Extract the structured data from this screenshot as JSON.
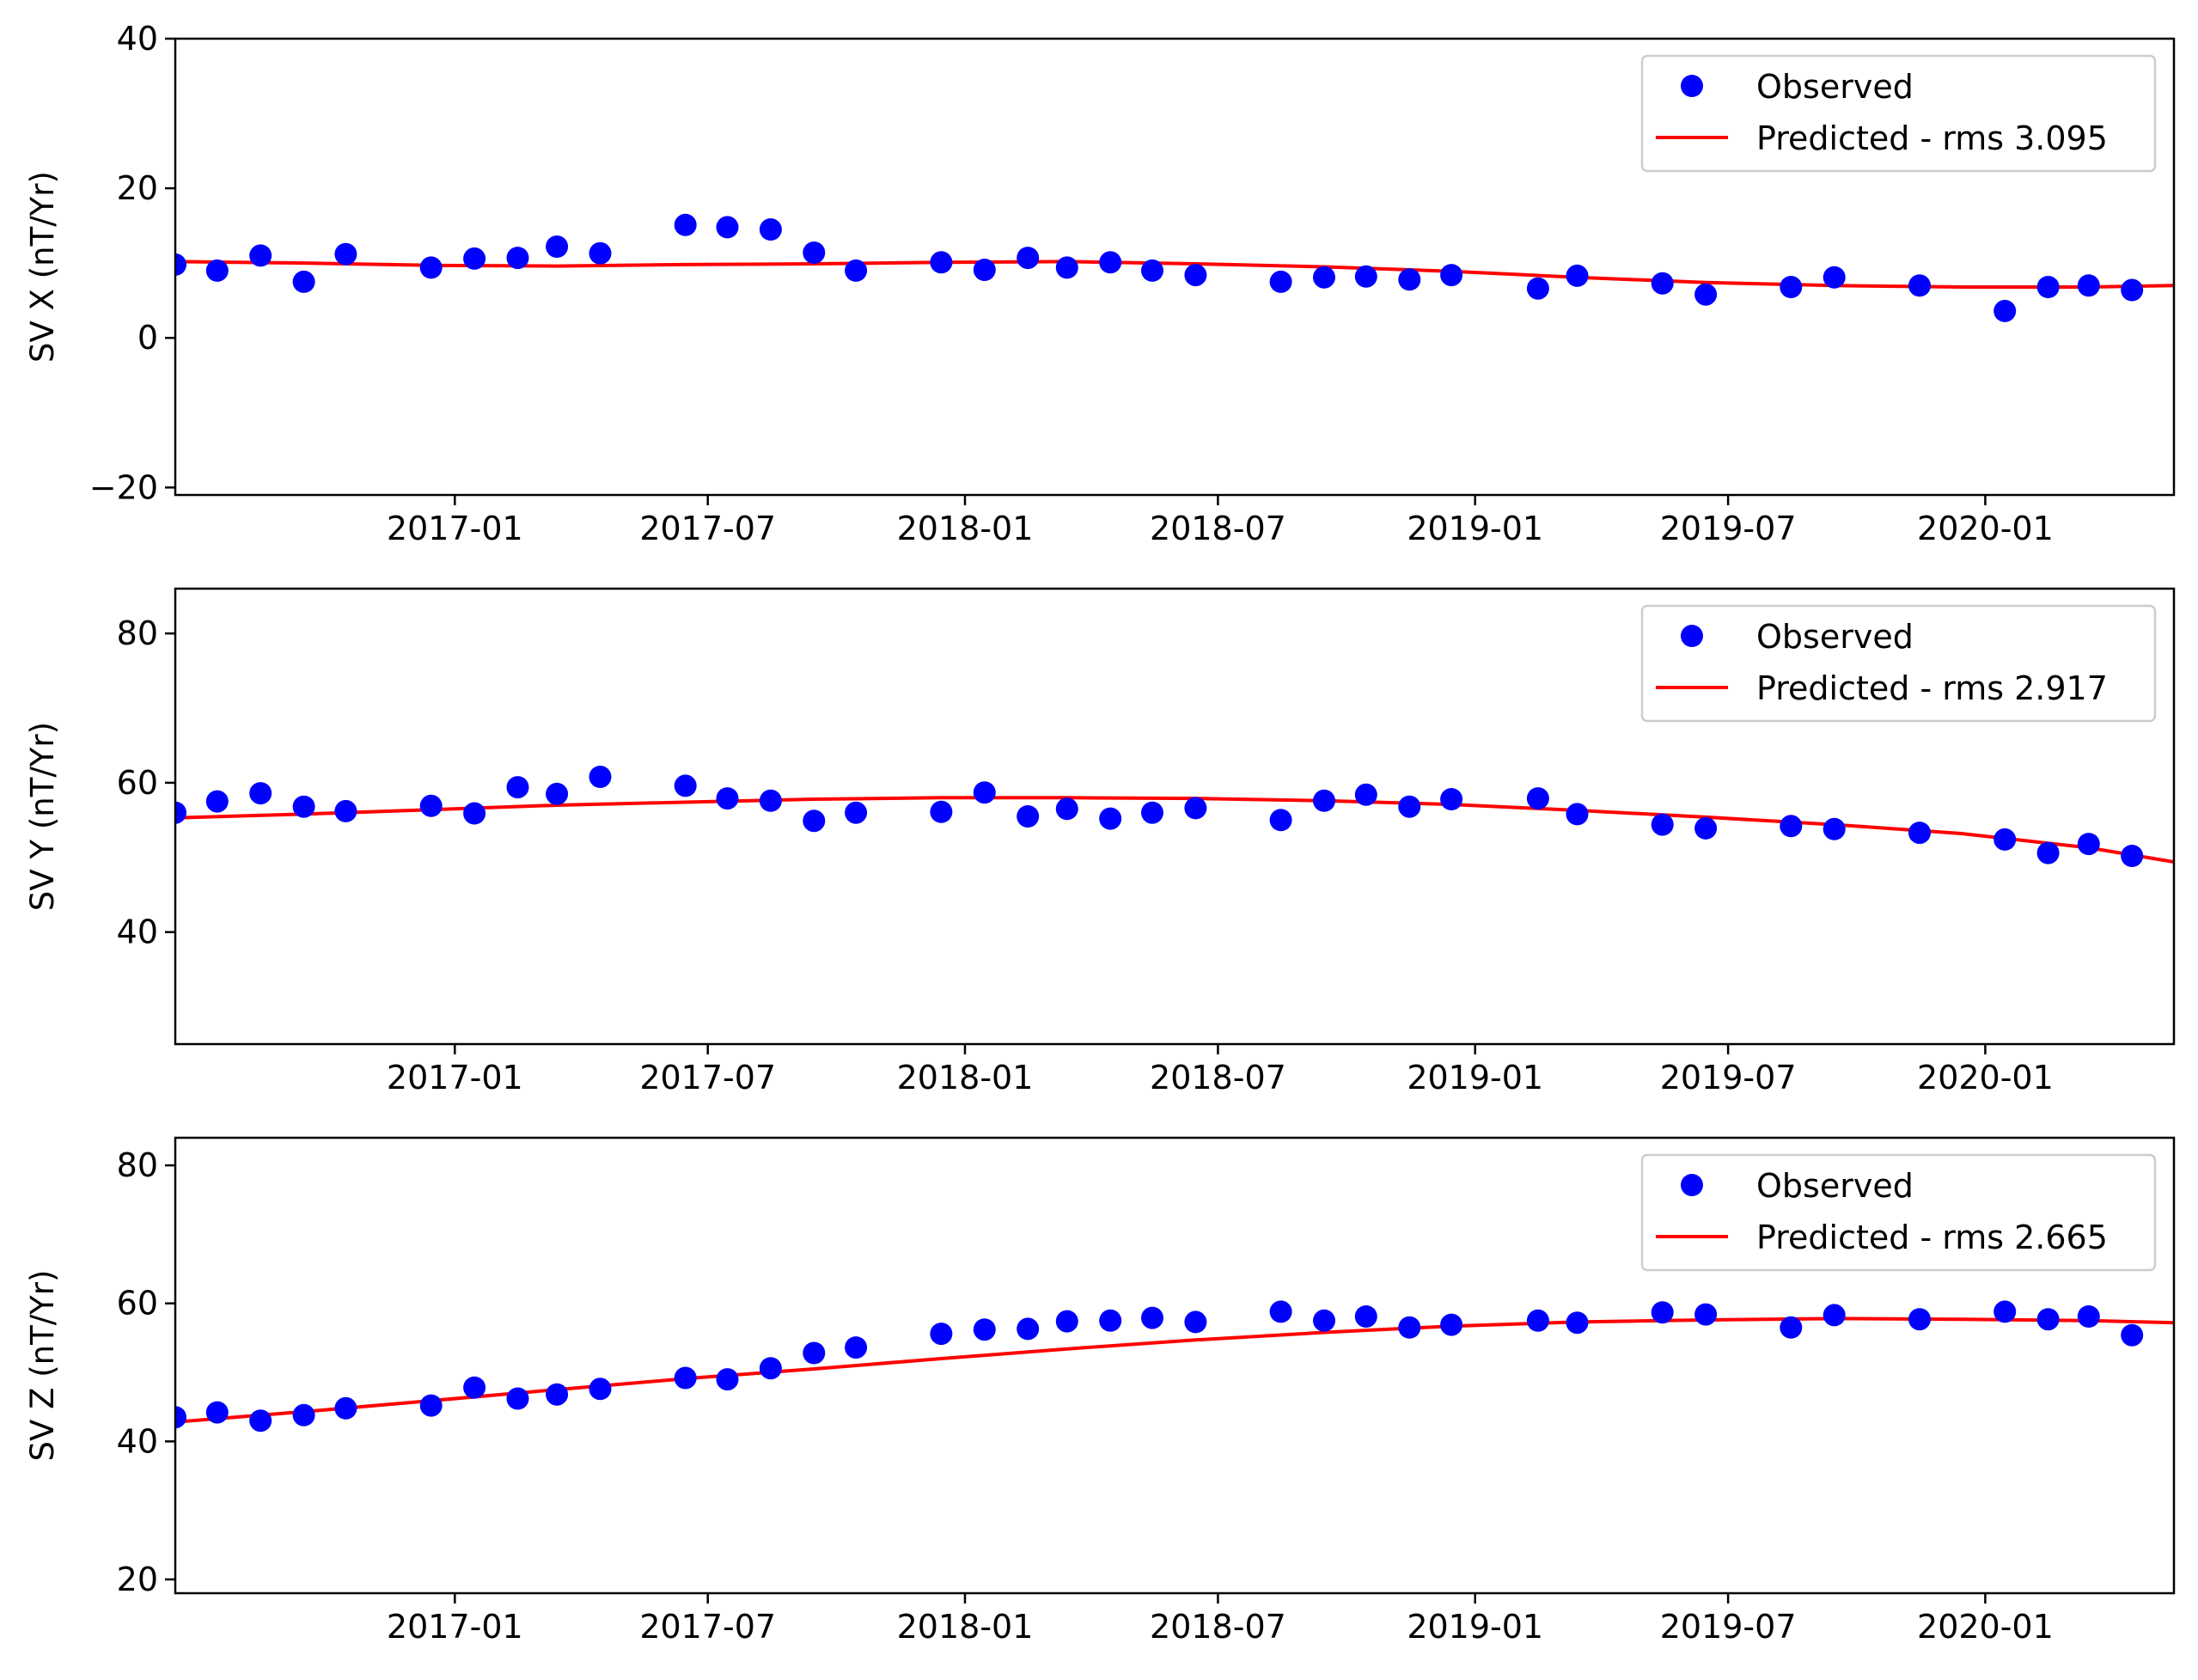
{
  "x_ticks": [
    "2017-01",
    "2017-07",
    "2018-01",
    "2018-07",
    "2019-01",
    "2019-07",
    "2020-01"
  ],
  "legend_observed": "Observed",
  "chart_data": [
    {
      "type": "scatter",
      "ylabel": "SV X (nT/Yr)",
      "xlim": [
        "2016-06-15",
        "2020-05-15"
      ],
      "ylim": [
        -21,
        40
      ],
      "y_ticks": [
        -20,
        0,
        20,
        40
      ],
      "y_tick_labels": [
        "−20",
        "0",
        "20",
        "40"
      ],
      "legend_position": "upper right",
      "colors": {
        "observed": "#0000ff",
        "predicted": "#ff0000"
      },
      "series": [
        {
          "name": "Observed",
          "marker": "circle",
          "x": [
            "2016-06-15",
            "2016-07-15",
            "2016-08-15",
            "2016-09-15",
            "2016-10-15",
            "2016-12-15",
            "2017-01-15",
            "2017-02-15",
            "2017-03-15",
            "2017-04-15",
            "2017-06-15",
            "2017-07-15",
            "2017-08-15",
            "2017-09-15",
            "2017-10-15",
            "2017-12-15",
            "2018-01-15",
            "2018-02-15",
            "2018-03-15",
            "2018-04-15",
            "2018-05-15",
            "2018-06-15",
            "2018-08-15",
            "2018-09-15",
            "2018-10-15",
            "2018-11-15",
            "2018-12-15",
            "2019-02-15",
            "2019-03-15",
            "2019-05-15",
            "2019-06-15",
            "2019-08-15",
            "2019-09-15",
            "2019-11-15",
            "2020-01-15",
            "2020-02-15",
            "2020-03-15",
            "2020-04-15"
          ],
          "y": [
            9.8,
            9.0,
            11.0,
            7.5,
            11.2,
            9.4,
            10.6,
            10.7,
            12.2,
            11.3,
            15.1,
            14.8,
            14.5,
            11.4,
            9.0,
            10.1,
            9.1,
            10.7,
            9.4,
            10.1,
            9.0,
            8.4,
            7.5,
            8.1,
            8.2,
            7.8,
            8.4,
            6.6,
            8.3,
            7.3,
            5.8,
            6.8,
            8.1,
            7.0,
            3.6,
            6.8,
            7.0,
            6.4
          ]
        },
        {
          "name": "Predicted - rms 3.095",
          "line": true,
          "x": [
            "2016-06-15",
            "2016-09-15",
            "2016-12-15",
            "2017-03-15",
            "2017-06-15",
            "2017-09-15",
            "2017-12-15",
            "2018-03-15",
            "2018-06-15",
            "2018-09-15",
            "2018-12-15",
            "2019-03-15",
            "2019-06-15",
            "2019-09-15",
            "2019-12-15",
            "2020-03-15",
            "2020-05-15"
          ],
          "y": [
            10.2,
            10.0,
            9.7,
            9.6,
            9.8,
            9.9,
            10.1,
            10.2,
            9.9,
            9.5,
            8.9,
            8.1,
            7.4,
            7.0,
            6.8,
            6.8,
            7.0
          ]
        }
      ]
    },
    {
      "type": "scatter",
      "ylabel": "SV Y (nT/Yr)",
      "xlim": [
        "2016-06-15",
        "2020-05-15"
      ],
      "ylim": [
        25,
        86
      ],
      "y_ticks": [
        40,
        60,
        80
      ],
      "y_tick_labels": [
        "40",
        "60",
        "80"
      ],
      "legend_position": "upper right",
      "colors": {
        "observed": "#0000ff",
        "predicted": "#ff0000"
      },
      "series": [
        {
          "name": "Observed",
          "marker": "circle",
          "x": [
            "2016-06-15",
            "2016-07-15",
            "2016-08-15",
            "2016-09-15",
            "2016-10-15",
            "2016-12-15",
            "2017-01-15",
            "2017-02-15",
            "2017-03-15",
            "2017-04-15",
            "2017-06-15",
            "2017-07-15",
            "2017-08-15",
            "2017-09-15",
            "2017-10-15",
            "2017-12-15",
            "2018-01-15",
            "2018-02-15",
            "2018-03-15",
            "2018-04-15",
            "2018-05-15",
            "2018-06-15",
            "2018-08-15",
            "2018-09-15",
            "2018-10-15",
            "2018-11-15",
            "2018-12-15",
            "2019-02-15",
            "2019-03-15",
            "2019-05-15",
            "2019-06-15",
            "2019-08-15",
            "2019-09-15",
            "2019-11-15",
            "2020-01-15",
            "2020-02-15",
            "2020-03-15",
            "2020-04-15"
          ],
          "y": [
            56.0,
            57.5,
            58.6,
            56.8,
            56.2,
            56.9,
            55.9,
            59.4,
            58.5,
            60.8,
            59.6,
            57.9,
            57.6,
            54.9,
            56.0,
            56.1,
            58.7,
            55.5,
            56.5,
            55.2,
            56.0,
            56.6,
            55.0,
            57.6,
            58.4,
            56.8,
            57.8,
            57.9,
            55.8,
            54.4,
            53.9,
            54.2,
            53.8,
            53.3,
            52.4,
            50.6,
            51.8,
            50.2
          ]
        },
        {
          "name": "Predicted - rms 2.917",
          "line": true,
          "x": [
            "2016-06-15",
            "2016-09-15",
            "2016-12-15",
            "2017-03-15",
            "2017-06-15",
            "2017-09-15",
            "2017-12-15",
            "2018-03-15",
            "2018-06-15",
            "2018-09-15",
            "2018-12-15",
            "2019-03-15",
            "2019-06-15",
            "2019-09-15",
            "2019-12-15",
            "2020-03-15",
            "2020-05-15"
          ],
          "y": [
            55.3,
            55.8,
            56.4,
            57.0,
            57.4,
            57.8,
            58.0,
            58.0,
            57.9,
            57.6,
            57.1,
            56.3,
            55.4,
            54.4,
            53.2,
            51.3,
            49.4
          ]
        }
      ]
    },
    {
      "type": "scatter",
      "ylabel": "SV Z (nT/Yr)",
      "xlim": [
        "2016-06-15",
        "2020-05-15"
      ],
      "ylim": [
        18,
        84
      ],
      "y_ticks": [
        20,
        40,
        60,
        80
      ],
      "y_tick_labels": [
        "20",
        "40",
        "60",
        "80"
      ],
      "legend_position": "upper right",
      "colors": {
        "observed": "#0000ff",
        "predicted": "#ff0000"
      },
      "series": [
        {
          "name": "Observed",
          "marker": "circle",
          "x": [
            "2016-06-15",
            "2016-07-15",
            "2016-08-15",
            "2016-09-15",
            "2016-10-15",
            "2016-12-15",
            "2017-01-15",
            "2017-02-15",
            "2017-03-15",
            "2017-04-15",
            "2017-06-15",
            "2017-07-15",
            "2017-08-15",
            "2017-09-15",
            "2017-10-15",
            "2017-12-15",
            "2018-01-15",
            "2018-02-15",
            "2018-03-15",
            "2018-04-15",
            "2018-05-15",
            "2018-06-15",
            "2018-08-15",
            "2018-09-15",
            "2018-10-15",
            "2018-11-15",
            "2018-12-15",
            "2019-02-15",
            "2019-03-15",
            "2019-05-15",
            "2019-06-15",
            "2019-08-15",
            "2019-09-15",
            "2019-11-15",
            "2020-01-15",
            "2020-02-15",
            "2020-03-15",
            "2020-04-15"
          ],
          "y": [
            43.5,
            44.2,
            43.0,
            43.8,
            44.8,
            45.2,
            47.8,
            46.2,
            46.8,
            47.6,
            49.2,
            49.0,
            50.6,
            52.8,
            53.6,
            55.6,
            56.2,
            56.3,
            57.4,
            57.5,
            57.9,
            57.3,
            58.8,
            57.5,
            58.1,
            56.5,
            56.9,
            57.5,
            57.2,
            58.7,
            58.4,
            56.5,
            58.3,
            57.7,
            58.8,
            57.7,
            58.1,
            55.4
          ]
        },
        {
          "name": "Predicted - rms 2.665",
          "line": true,
          "x": [
            "2016-06-15",
            "2016-09-15",
            "2016-12-15",
            "2017-03-15",
            "2017-06-15",
            "2017-09-15",
            "2017-12-15",
            "2018-03-15",
            "2018-06-15",
            "2018-09-15",
            "2018-12-15",
            "2019-03-15",
            "2019-06-15",
            "2019-09-15",
            "2019-12-15",
            "2020-03-15",
            "2020-05-15"
          ],
          "y": [
            42.8,
            44.3,
            45.9,
            47.5,
            49.1,
            50.5,
            52.0,
            53.4,
            54.7,
            55.8,
            56.7,
            57.3,
            57.6,
            57.8,
            57.7,
            57.5,
            57.2
          ]
        }
      ]
    }
  ]
}
